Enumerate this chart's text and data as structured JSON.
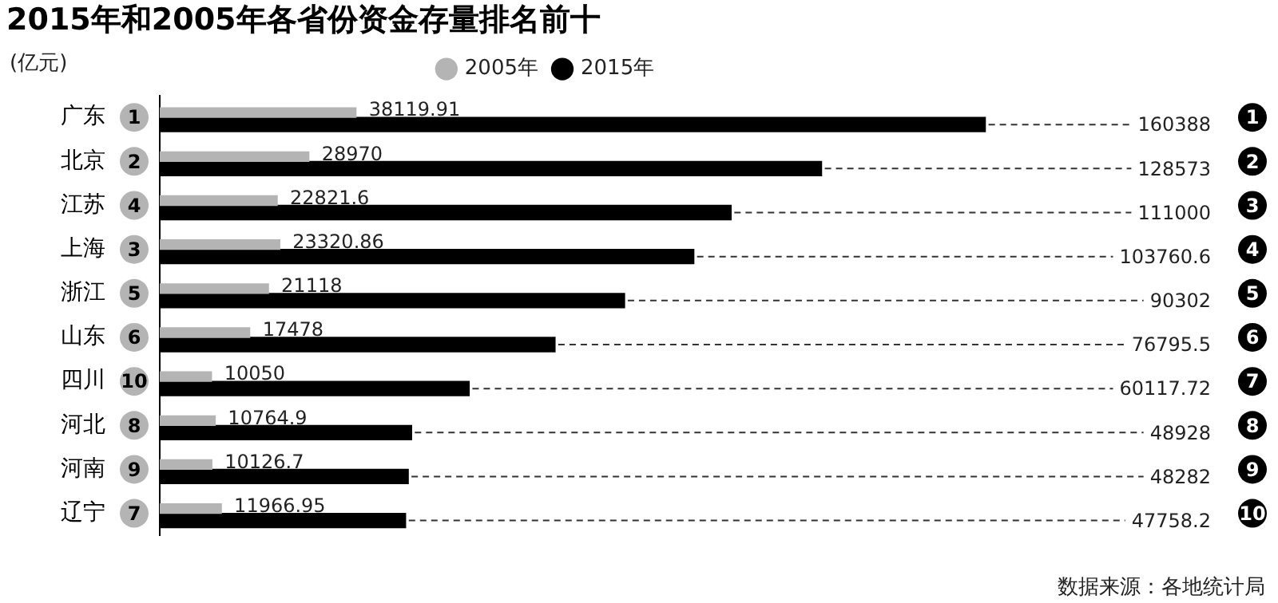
{
  "chart_data": {
    "type": "bar",
    "orientation": "horizontal",
    "title": "2015年和2005年各省份资金存量排名前十",
    "ylabel": "(亿元)",
    "categories": [
      "广东",
      "北京",
      "江苏",
      "上海",
      "浙江",
      "山东",
      "四川",
      "河北",
      "河南",
      "辽宁"
    ],
    "series": [
      {
        "name": "2005年",
        "color": "#b4b4b4",
        "values": [
          38119.91,
          28970,
          22821.6,
          23320.86,
          21118,
          17478,
          10050,
          10764.9,
          10126.7,
          11966.95
        ]
      },
      {
        "name": "2015年",
        "color": "#000000",
        "values": [
          160388,
          128573,
          111000,
          103760.6,
          90302,
          76795.5,
          60117.72,
          48928,
          48282,
          47758.2
        ]
      }
    ],
    "data_labels": true,
    "legend": "top",
    "annotations": [
      "1",
      "2",
      "4",
      "3",
      "5",
      "6",
      "10",
      "8",
      "9",
      "7",
      "1",
      "2",
      "3",
      "4",
      "5",
      "6",
      "7",
      "8",
      "9",
      "10",
      "数据来源：各地统计局"
    ]
  }
}
